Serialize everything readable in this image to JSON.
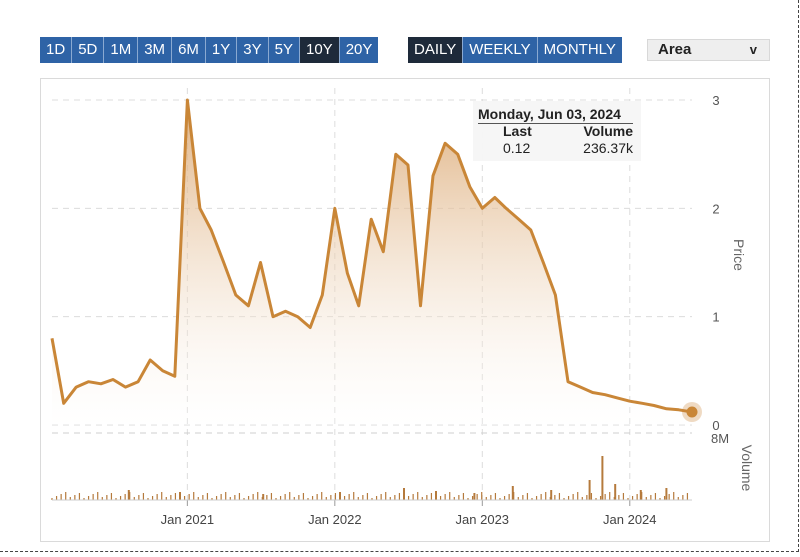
{
  "toolbar": {
    "ranges": [
      "1D",
      "5D",
      "1M",
      "3M",
      "6M",
      "1Y",
      "3Y",
      "5Y",
      "10Y",
      "20Y"
    ],
    "active_range": "10Y",
    "frequencies": [
      "DAILY",
      "WEEKLY",
      "MONTHLY"
    ],
    "active_frequency": "DAILY",
    "chart_type": "Area",
    "caret": "v"
  },
  "tooltip": {
    "date": "Monday, Jun 03, 2024",
    "last_header": "Last",
    "volume_header": "Volume",
    "last_value": "0.12",
    "volume_value": "236.37k"
  },
  "colors": {
    "line": "#c98637",
    "area_top": "#d9a36a",
    "volume": "#b57a3c",
    "button": "#2e63a6",
    "button_active": "#1e2a3a"
  },
  "chart_data": {
    "type": "area",
    "ylabel": "Price",
    "volume_label": "Volume",
    "ylim": [
      0,
      3
    ],
    "yticks": [
      "0",
      "1",
      "2",
      "3"
    ],
    "volume_ticks": [
      "8M"
    ],
    "xticks": [
      "Jan 2021",
      "Jan 2022",
      "Jan 2023",
      "Jan 2024"
    ],
    "grid": true,
    "x": [
      "2020-02",
      "2020-03",
      "2020-04",
      "2020-05",
      "2020-06",
      "2020-07",
      "2020-08",
      "2020-09",
      "2020-10",
      "2020-11",
      "2020-12",
      "2021-01",
      "2021-02",
      "2021-03",
      "2021-04",
      "2021-05",
      "2021-06",
      "2021-07",
      "2021-08",
      "2021-09",
      "2021-10",
      "2021-11",
      "2021-12",
      "2022-01",
      "2022-02",
      "2022-03",
      "2022-04",
      "2022-05",
      "2022-06",
      "2022-07",
      "2022-08",
      "2022-09",
      "2022-10",
      "2022-11",
      "2022-12",
      "2023-01",
      "2023-02",
      "2023-03",
      "2023-04",
      "2023-05",
      "2023-06",
      "2023-07",
      "2023-08",
      "2023-09",
      "2023-10",
      "2023-11",
      "2023-12",
      "2024-01",
      "2024-02",
      "2024-03",
      "2024-04",
      "2024-05",
      "2024-06"
    ],
    "series": [
      {
        "values": [
          0.8,
          0.2,
          0.35,
          0.4,
          0.38,
          0.42,
          0.35,
          0.4,
          0.6,
          0.5,
          0.45,
          3.0,
          2.0,
          1.8,
          1.5,
          1.2,
          1.1,
          1.5,
          1.0,
          1.05,
          1.0,
          0.9,
          1.2,
          2.0,
          1.4,
          1.1,
          1.9,
          1.6,
          2.5,
          2.4,
          1.1,
          2.3,
          2.6,
          2.5,
          2.2,
          2.0,
          2.1,
          2.0,
          1.9,
          1.8,
          1.5,
          1.2,
          0.4,
          0.35,
          0.3,
          0.28,
          0.25,
          0.22,
          0.2,
          0.18,
          0.15,
          0.14,
          0.12
        ]
      }
    ],
    "last_point": {
      "date": "2024-06-03",
      "last": 0.12,
      "volume": "236.37k"
    }
  }
}
